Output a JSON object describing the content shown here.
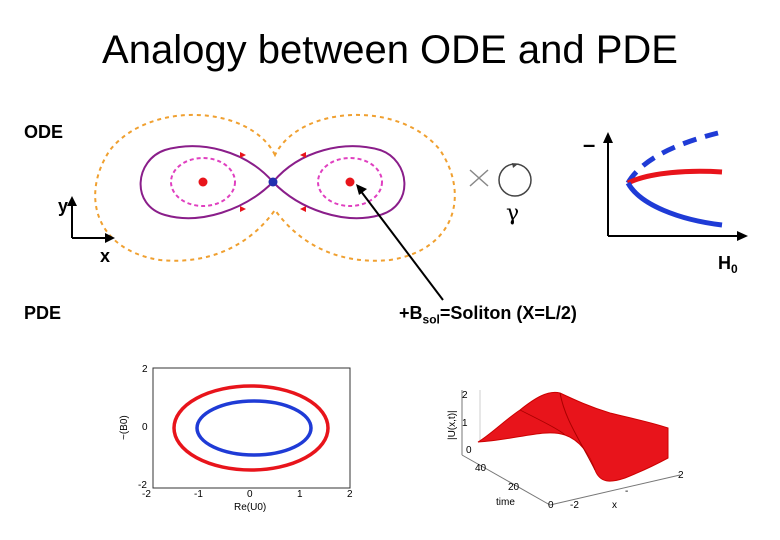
{
  "title": "Analogy between ODE and PDE",
  "ode_section": {
    "label": "ODE",
    "axis_y": "y",
    "axis_x": "x",
    "gamma": "γ",
    "dash_label": "–"
  },
  "bifurcation": {
    "axis_label_main": "H",
    "axis_label_sub": "0",
    "colors": {
      "stable": "#e8141b",
      "unstable": "#1f3bd6"
    }
  },
  "pde_section": {
    "label": "PDE"
  },
  "annotation": {
    "prefix": "+B",
    "subscript": "sol",
    "rest": "=Soliton (X=L/2)"
  },
  "orbit_plot": {
    "y_ticks": [
      "2",
      "0",
      "-2"
    ],
    "x_ticks": [
      "-2",
      "-1",
      "0",
      "1",
      "2"
    ],
    "ylabel": "~(B0)",
    "xlabel": "Re(U0)",
    "colors": {
      "outer": "#e8141b",
      "inner": "#1f3bd6"
    }
  },
  "surface_plot": {
    "z_ticks": [
      "2",
      "1",
      "0"
    ],
    "time_ticks": [
      "40",
      "20",
      "0"
    ],
    "time_label": "time",
    "x_ticks": [
      "-2",
      "-",
      "2"
    ],
    "x_label": "x",
    "zlabel": "|U(x,t)|",
    "color": "#e8141b"
  },
  "colors": {
    "phase_orange": "#f0a030",
    "phase_purple": "#8a1e8a",
    "phase_pink": "#e040c0",
    "fixed_red": "#e8141b",
    "saddle_blue": "#2230b0"
  }
}
